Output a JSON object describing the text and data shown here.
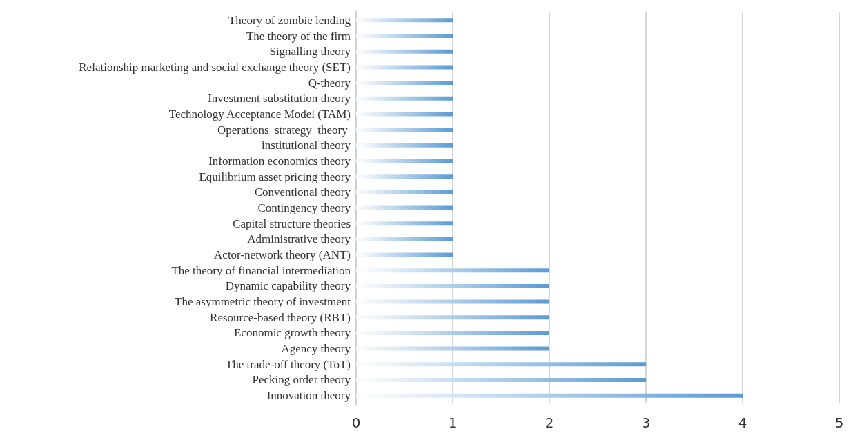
{
  "chart_data": {
    "type": "bar",
    "orientation": "horizontal",
    "categories": [
      "Theory of zombie lending",
      "The theory of the firm",
      "Signalling theory",
      "Relationship marketing and social exchange theory (SET)",
      "Q-theory",
      "Investment substitution theory",
      "Technology Acceptance Model (TAM)",
      "Operations  strategy  theory ",
      "institutional theory",
      "Information economics theory",
      "Equilibrium asset pricing theory",
      "Conventional theory",
      "Contingency theory",
      "Capital structure theories",
      "Administrative theory",
      "Actor-network theory (ANT)",
      "The theory of financial intermediation",
      "Dynamic capability theory",
      "The asymmetric theory of investment",
      "Resource-based theory (RBT)",
      "Economic growth theory",
      "Agency theory",
      "The trade-off theory (ToT)",
      "Pecking order theory",
      "Innovation theory"
    ],
    "values": [
      1,
      1,
      1,
      1,
      1,
      1,
      1,
      1,
      1,
      1,
      1,
      1,
      1,
      1,
      1,
      1,
      2,
      2,
      2,
      2,
      2,
      2,
      3,
      3,
      4
    ],
    "color": "#5b9bd5",
    "xlim": [
      0,
      5
    ],
    "xticks": [
      0,
      1,
      2,
      3,
      4,
      5
    ],
    "grid": "x"
  }
}
